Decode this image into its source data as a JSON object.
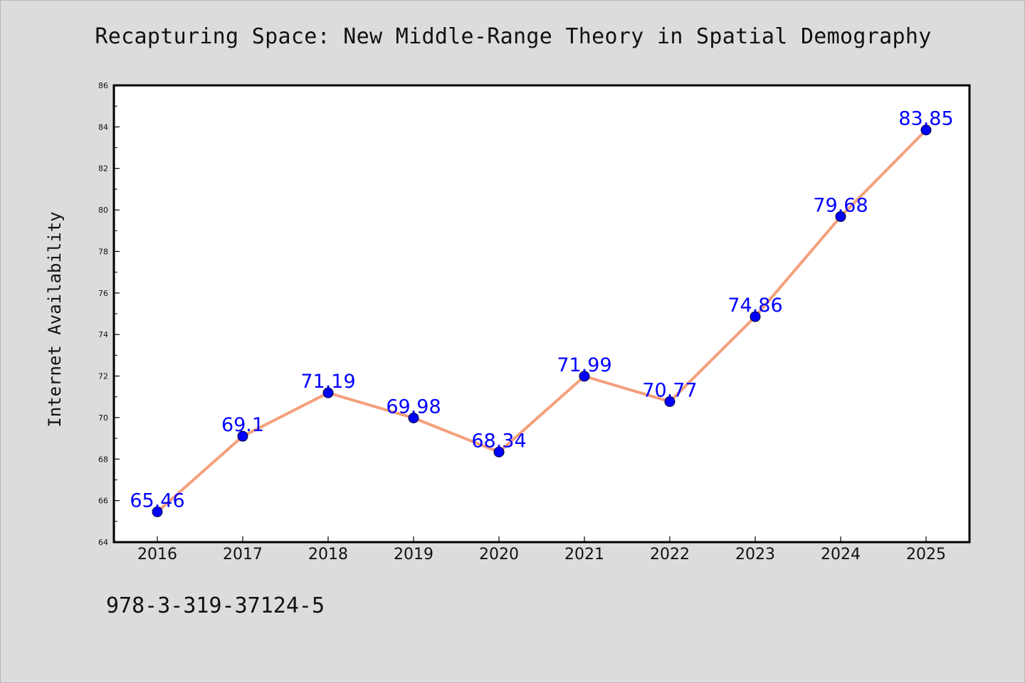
{
  "chart_data": {
    "type": "line",
    "title": "Recapturing Space: New Middle-Range Theory in Spatial Demography",
    "xlabel": "",
    "ylabel": "Internet Availability",
    "categories": [
      "2016",
      "2017",
      "2018",
      "2019",
      "2020",
      "2021",
      "2022",
      "2023",
      "2024",
      "2025"
    ],
    "series": [
      {
        "values": [
          65.46,
          69.1,
          71.19,
          69.98,
          68.34,
          71.99,
          70.77,
          74.86,
          79.68,
          83.85
        ],
        "data_labels": [
          "65.46",
          "69.1",
          "71.19",
          "69.98",
          "68.34",
          "71.99",
          "70.77",
          "74.86",
          "79.68",
          "83.85"
        ]
      }
    ],
    "ylim": [
      64,
      86
    ],
    "yticks": [
      "64",
      "66",
      "68",
      "70",
      "72",
      "74",
      "76",
      "78",
      "80",
      "82",
      "84",
      "86"
    ],
    "grid": false,
    "line_color": "#f4a07c",
    "marker_color": "#0000ff",
    "label_color": "#0000ff"
  },
  "footer": {
    "isbn": "978-3-319-37124-5"
  }
}
